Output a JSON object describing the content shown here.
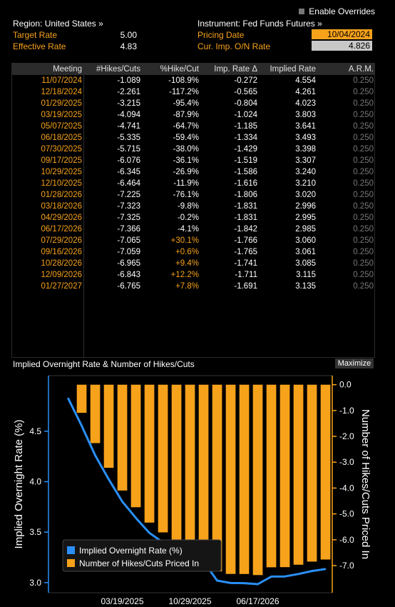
{
  "header": {
    "enable_overrides": "Enable Overrides",
    "region": "Region: United States »",
    "instrument": "Instrument: Fed Funds Futures »",
    "target_rate_label": "Target Rate",
    "target_rate_value": "5.00",
    "effective_rate_label": "Effective Rate",
    "effective_rate_value": "4.83",
    "pricing_date_label": "Pricing Date",
    "pricing_date_value": "10/04/2024",
    "cur_imp_label": "Cur. Imp. O/N Rate",
    "cur_imp_value": "4.826"
  },
  "table": {
    "columns": [
      "Meeting",
      "#Hikes/Cuts",
      "%Hike/Cut",
      "Imp. Rate Δ",
      "Implied Rate",
      "A.R.M."
    ],
    "rows": [
      [
        "11/07/2024",
        "-1.089",
        "-108.9%",
        "-0.272",
        "4.554",
        "0.250"
      ],
      [
        "12/18/2024",
        "-2.261",
        "-117.2%",
        "-0.565",
        "4.261",
        "0.250"
      ],
      [
        "01/29/2025",
        "-3.215",
        "-95.4%",
        "-0.804",
        "4.023",
        "0.250"
      ],
      [
        "03/19/2025",
        "-4.094",
        "-87.9%",
        "-1.024",
        "3.803",
        "0.250"
      ],
      [
        "05/07/2025",
        "-4.741",
        "-64.7%",
        "-1.185",
        "3.641",
        "0.250"
      ],
      [
        "06/18/2025",
        "-5.335",
        "-59.4%",
        "-1.334",
        "3.493",
        "0.250"
      ],
      [
        "07/30/2025",
        "-5.715",
        "-38.0%",
        "-1.429",
        "3.398",
        "0.250"
      ],
      [
        "09/17/2025",
        "-6.076",
        "-36.1%",
        "-1.519",
        "3.307",
        "0.250"
      ],
      [
        "10/29/2025",
        "-6.345",
        "-26.9%",
        "-1.586",
        "3.240",
        "0.250"
      ],
      [
        "12/10/2025",
        "-6.464",
        "-11.9%",
        "-1.616",
        "3.210",
        "0.250"
      ],
      [
        "01/28/2026",
        "-7.225",
        "-76.1%",
        "-1.806",
        "3.020",
        "0.250"
      ],
      [
        "03/18/2026",
        "-7.323",
        "-9.8%",
        "-1.831",
        "2.996",
        "0.250"
      ],
      [
        "04/29/2026",
        "-7.325",
        "-0.2%",
        "-1.831",
        "2.995",
        "0.250"
      ],
      [
        "06/17/2026",
        "-7.366",
        "-4.1%",
        "-1.842",
        "2.985",
        "0.250"
      ],
      [
        "07/29/2026",
        "-7.065",
        "+30.1%",
        "-1.766",
        "3.060",
        "0.250"
      ],
      [
        "09/16/2026",
        "-7.059",
        "+0.6%",
        "-1.765",
        "3.061",
        "0.250"
      ],
      [
        "10/28/2026",
        "-6.965",
        "+9.4%",
        "-1.741",
        "3.085",
        "0.250"
      ],
      [
        "12/09/2026",
        "-6.843",
        "+12.2%",
        "-1.711",
        "3.115",
        "0.250"
      ],
      [
        "01/27/2027",
        "-6.765",
        "+7.8%",
        "-1.691",
        "3.135",
        "0.250"
      ]
    ]
  },
  "chart_panel": {
    "title": "Implied Overnight Rate & Number of Hikes/Cuts",
    "maximize_label": "Maximize"
  },
  "chart_data": {
    "type": "bar+line",
    "title": "",
    "ylabel_left": "Implied Overnight Rate (%)",
    "ylabel_right": "Number of Hikes/Cuts Priced In",
    "ylim_left": [
      2.9,
      5.05
    ],
    "ylim_right": [
      -8.05,
      0.35
    ],
    "left_ticks": [
      "3.0",
      "3.5",
      "4.0",
      "4.5"
    ],
    "right_ticks": [
      "0.0",
      "-1.0",
      "-2.0",
      "-3.0",
      "-4.0",
      "-5.0",
      "-6.0",
      "-7.0"
    ],
    "x_tick_labels": [
      "03/19/2025",
      "10/29/2025",
      "06/17/2026"
    ],
    "categories": [
      "10/04/2024",
      "11/07/2024",
      "12/18/2024",
      "01/29/2025",
      "03/19/2025",
      "05/07/2025",
      "06/18/2025",
      "07/30/2025",
      "09/17/2025",
      "10/29/2025",
      "12/10/2025",
      "01/28/2026",
      "03/18/2026",
      "04/29/2026",
      "06/17/2026",
      "07/29/2026",
      "09/16/2026",
      "10/28/2026",
      "12/09/2026",
      "01/27/2027"
    ],
    "series": [
      {
        "name": "Implied Overnight Rate (%)",
        "axis": "left",
        "kind": "line",
        "values": [
          4.826,
          4.554,
          4.261,
          4.023,
          3.803,
          3.641,
          3.493,
          3.398,
          3.307,
          3.24,
          3.21,
          3.02,
          2.996,
          2.995,
          2.985,
          3.06,
          3.061,
          3.085,
          3.115,
          3.135
        ]
      },
      {
        "name": "Number of Hikes/Cuts Priced In",
        "axis": "right",
        "kind": "bar",
        "values": [
          0,
          -1.089,
          -2.261,
          -3.215,
          -4.094,
          -4.741,
          -5.335,
          -5.715,
          -6.076,
          -6.345,
          -6.464,
          -7.225,
          -7.323,
          -7.325,
          -7.366,
          -7.065,
          -7.059,
          -6.965,
          -6.843,
          -6.765
        ]
      }
    ],
    "colors": {
      "line": "#2a8ff7",
      "bar": "#f7a21b",
      "axis_right": "#f7a21b",
      "axis_left": "#2a8ff7"
    },
    "legend": {
      "placement": "bottom-left",
      "entries": [
        "Implied Overnight Rate (%)",
        "Number of Hikes/Cuts Priced In"
      ]
    }
  }
}
